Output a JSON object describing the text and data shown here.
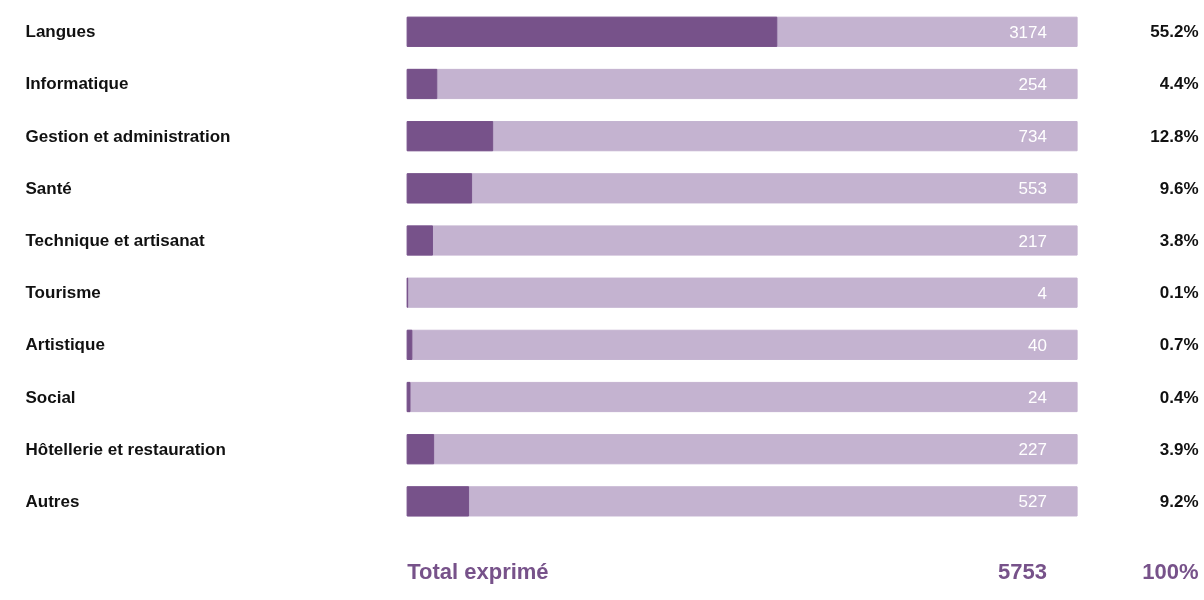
{
  "chart_data": {
    "type": "bar",
    "orientation": "horizontal",
    "categories": [
      "Langues",
      "Informatique",
      "Gestion et administration",
      "Santé",
      "Technique et artisanat",
      "Tourisme",
      "Artistique",
      "Social",
      "Hôtellerie et restauration",
      "Autres"
    ],
    "series": [
      {
        "color": "#77528a",
        "values": [
          3174,
          254,
          734,
          553,
          217,
          4,
          40,
          24,
          227,
          527
        ]
      }
    ],
    "xlim": [
      0,
      5753
    ],
    "tick_labels": false,
    "data_labels": true,
    "annotations": [
      "55.2%",
      "4.4%",
      "12.8%",
      "9.6%",
      "3.8%",
      "0.1%",
      "0.7%",
      "0.4%",
      "3.9%",
      "9.2%",
      "Total exprimé",
      "5753",
      "100%"
    ]
  }
}
